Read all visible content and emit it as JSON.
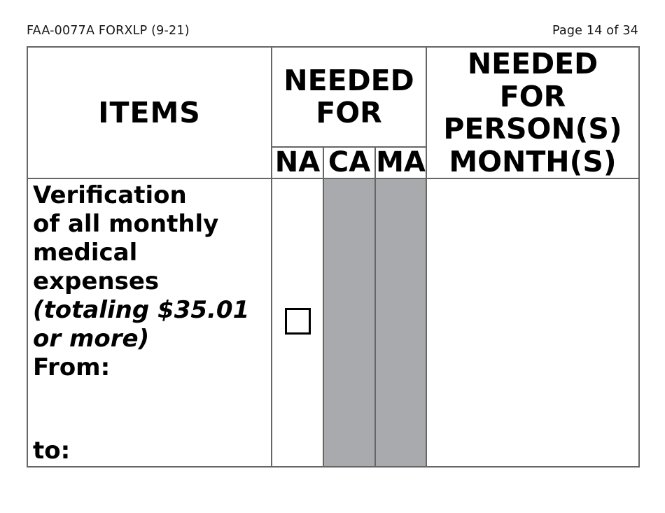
{
  "page": {
    "form_number": "FAA-0077A FORXLP (9-21)",
    "page_indicator": "Page 14 of 34"
  },
  "table": {
    "headers": {
      "items": "ITEMS",
      "needed_for": {
        "label": "NEEDED FOR",
        "lines": [
          "NEEDED",
          "FOR"
        ]
      },
      "needed_for_persons": {
        "label": "NEEDED FOR PERSON(S) MONTH(S)",
        "lines": [
          "NEEDED",
          "FOR",
          "PERSON(S)",
          "MONTH(S)"
        ]
      },
      "subcolumns": [
        "NA",
        "CA",
        "MA"
      ]
    },
    "row": {
      "item_title": "Verification of all monthly medical expenses",
      "title_lines": [
        "Verification",
        "of all monthly",
        "medical",
        "expenses"
      ],
      "item_note": "(totaling $35.01 or more)",
      "note_lines": [
        "(totaling $35.01",
        "or more)"
      ],
      "from_label": "From:",
      "to_label": "to:",
      "na_checkbox_checked": false,
      "ca_cell_state": "disabled",
      "ma_cell_state": "disabled"
    },
    "colors": {
      "disabled_cell_fill": "#a8aaae",
      "border": "#666666",
      "checkbox_border": "#000000",
      "text": "#000000"
    }
  }
}
